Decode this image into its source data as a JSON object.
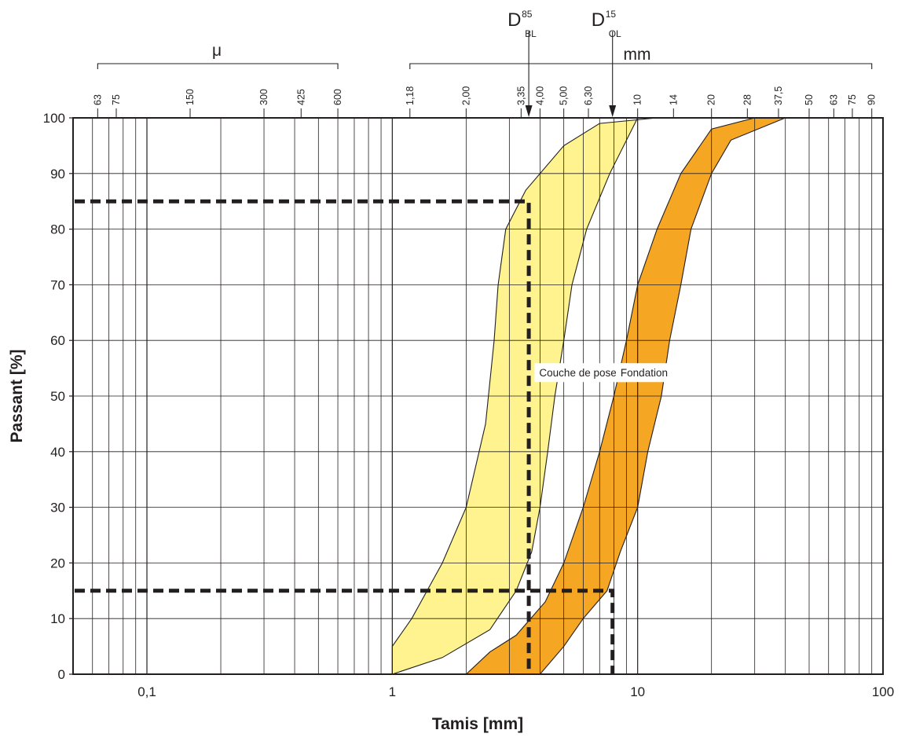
{
  "chart_data": {
    "type": "area",
    "xlabel": "Tamis [mm]",
    "ylabel": "Passant [%]",
    "x_scale": "log",
    "xlim": [
      0.05,
      100
    ],
    "ylim": [
      0,
      100
    ],
    "grid": true,
    "x_tick_labels": [
      {
        "value": 0.1,
        "label": "0,1"
      },
      {
        "value": 1,
        "label": "1"
      },
      {
        "value": 10,
        "label": "10"
      },
      {
        "value": 100,
        "label": "100"
      }
    ],
    "y_ticks": [
      0,
      10,
      20,
      30,
      40,
      50,
      60,
      70,
      80,
      90,
      100
    ],
    "sieve_scale": {
      "micron_label": "μ",
      "mm_label": "mm",
      "micron_sieves": [
        {
          "value": 0.063,
          "label": "63"
        },
        {
          "value": 0.075,
          "label": "75"
        },
        {
          "value": 0.15,
          "label": "150"
        },
        {
          "value": 0.3,
          "label": "300"
        },
        {
          "value": 0.425,
          "label": "425"
        },
        {
          "value": 0.6,
          "label": "600"
        }
      ],
      "mm_sieves": [
        {
          "value": 1.18,
          "label": "1,18"
        },
        {
          "value": 2.0,
          "label": "2,00"
        },
        {
          "value": 3.35,
          "label": "3,35"
        },
        {
          "value": 4.0,
          "label": "4,00"
        },
        {
          "value": 5.0,
          "label": "5,00"
        },
        {
          "value": 6.3,
          "label": "6,30"
        },
        {
          "value": 10,
          "label": "10"
        },
        {
          "value": 14,
          "label": "14"
        },
        {
          "value": 20,
          "label": "20"
        },
        {
          "value": 28,
          "label": "28"
        },
        {
          "value": 37.5,
          "label": "37,5"
        },
        {
          "value": 50,
          "label": "50"
        },
        {
          "value": 63,
          "label": "63"
        },
        {
          "value": 75,
          "label": "75"
        },
        {
          "value": 90,
          "label": "90"
        }
      ]
    },
    "series": [
      {
        "name": "Couche de pose",
        "color": "#fff38f",
        "upper": [
          [
            1.0,
            5
          ],
          [
            1.2,
            10
          ],
          [
            1.6,
            20
          ],
          [
            2.0,
            30
          ],
          [
            2.4,
            45
          ],
          [
            2.6,
            60
          ],
          [
            2.7,
            70
          ],
          [
            2.9,
            80
          ],
          [
            3.5,
            87
          ],
          [
            5.0,
            95
          ],
          [
            7.0,
            99
          ],
          [
            12.0,
            100
          ]
        ],
        "lower": [
          [
            1.0,
            0
          ],
          [
            1.6,
            3
          ],
          [
            2.5,
            8
          ],
          [
            3.2,
            15
          ],
          [
            3.7,
            22
          ],
          [
            4.0,
            30
          ],
          [
            4.3,
            40
          ],
          [
            4.6,
            50
          ],
          [
            5.0,
            60
          ],
          [
            5.4,
            70
          ],
          [
            6.2,
            80
          ],
          [
            7.7,
            90
          ],
          [
            10.0,
            100
          ]
        ]
      },
      {
        "name": "Fondation",
        "color": "#f5a623",
        "upper": [
          [
            2.0,
            0
          ],
          [
            2.5,
            4
          ],
          [
            3.2,
            7
          ],
          [
            4.2,
            13
          ],
          [
            5.0,
            20
          ],
          [
            6.0,
            30
          ],
          [
            7.0,
            40
          ],
          [
            8.0,
            50
          ],
          [
            9.0,
            60
          ],
          [
            10.0,
            70
          ],
          [
            12.0,
            80
          ],
          [
            15.0,
            90
          ],
          [
            20.0,
            98
          ],
          [
            30.0,
            100
          ]
        ],
        "lower": [
          [
            4.0,
            0
          ],
          [
            5.0,
            5
          ],
          [
            6.0,
            10
          ],
          [
            7.5,
            15
          ],
          [
            8.5,
            22
          ],
          [
            10.0,
            30
          ],
          [
            11.0,
            40
          ],
          [
            12.5,
            50
          ],
          [
            13.5,
            60
          ],
          [
            15.0,
            70
          ],
          [
            16.5,
            80
          ],
          [
            20.0,
            90
          ],
          [
            24.0,
            96
          ],
          [
            40.0,
            100
          ]
        ]
      }
    ],
    "overlap_color": "#ffc814",
    "annotations": [
      {
        "label": "D",
        "sup": "85",
        "sub": "BL",
        "x": 3.6,
        "y": 85
      },
      {
        "label": "D",
        "sup": "15",
        "sub": "OL",
        "x": 7.9,
        "y": 15
      }
    ]
  }
}
